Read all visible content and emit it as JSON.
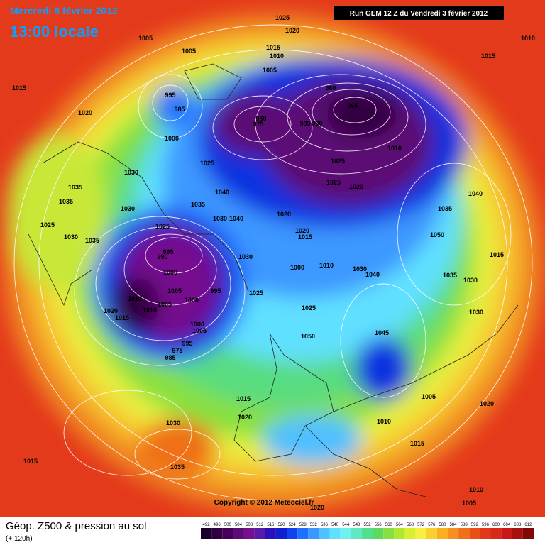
{
  "header": {
    "date": "Mercredi 8 février 2012",
    "time": "13:00 locale",
    "run": "Run GEM 12 Z du Vendredi 3 février 2012"
  },
  "footer": {
    "title": "Géop. Z500 & pression au sol",
    "subtitle": "(+ 120h)",
    "copyright": "Copyright © 2012 Meteociel.fr"
  },
  "legend": {
    "levels": [
      492,
      496,
      500,
      504,
      508,
      512,
      516,
      520,
      524,
      528,
      532,
      536,
      540,
      544,
      548,
      552,
      556,
      560,
      564,
      568,
      572,
      576,
      580,
      584,
      588,
      592,
      596,
      600,
      604,
      608,
      612
    ],
    "colors": [
      "#1a0028",
      "#300040",
      "#460058",
      "#5c0c74",
      "#74108e",
      "#5818a8",
      "#2a10b8",
      "#1020d0",
      "#1040f0",
      "#2070ff",
      "#3c98ff",
      "#50c0ff",
      "#60e0ff",
      "#70f0f0",
      "#60e8c0",
      "#50e090",
      "#60d860",
      "#88e040",
      "#b0e830",
      "#d8f030",
      "#f8f040",
      "#f8d030",
      "#f8b020",
      "#f89020",
      "#f07018",
      "#e85018",
      "#e03818",
      "#d82818",
      "#c81818",
      "#a81010",
      "#800808"
    ]
  },
  "pressure_labels": [
    1025,
    1020,
    1005,
    1005,
    1015,
    1010,
    1005,
    1015,
    1010,
    1015,
    1020,
    995,
    985,
    980,
    965,
    980,
    975,
    985,
    990,
    1000,
    1010,
    1025,
    1025,
    1030,
    1035,
    1025,
    1020,
    1035,
    1030,
    1040,
    1035,
    1030,
    1040,
    1035,
    1040,
    1020,
    1025,
    1030,
    1035,
    1025,
    1020,
    1015,
    1050,
    1015,
    995,
    990,
    1030,
    1000,
    1010,
    1030,
    1040,
    1000,
    1035,
    1030,
    1005,
    995,
    1025,
    1010,
    1000,
    1005,
    1020,
    1010,
    1015,
    1025,
    1030,
    1000,
    1005,
    1045,
    1050,
    995,
    975,
    985,
    1015,
    1005,
    1020,
    1020,
    1010,
    1030,
    1015,
    1015,
    1035,
    1010,
    1005,
    1020
  ]
}
